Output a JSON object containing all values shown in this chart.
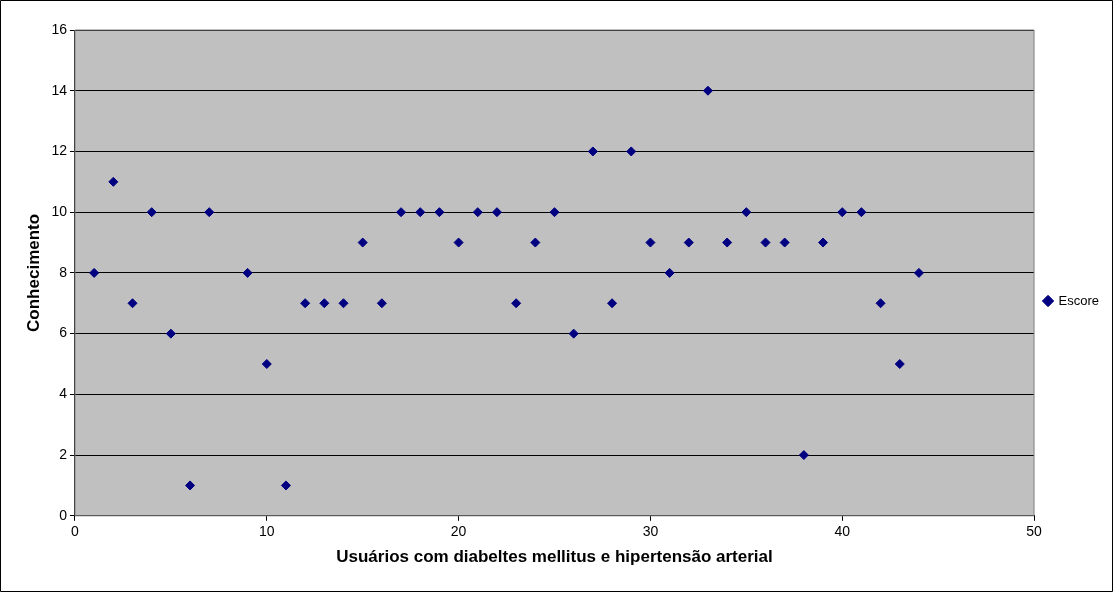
{
  "chart_data": {
    "type": "scatter",
    "xlabel": "Usuários com diabeltes mellitus e hipertensão arterial",
    "ylabel": "Conhecimento",
    "series": [
      {
        "name": "Escore",
        "color": "#000080",
        "x": [
          1,
          2,
          3,
          4,
          5,
          6,
          7,
          9,
          10,
          11,
          12,
          13,
          14,
          15,
          16,
          17,
          18,
          19,
          20,
          21,
          22,
          23,
          24,
          25,
          26,
          27,
          28,
          29,
          30,
          31,
          32,
          33,
          34,
          35,
          36,
          37,
          38,
          39,
          40,
          41,
          42,
          43,
          44
        ],
        "values": [
          8,
          11,
          7,
          10,
          6,
          1,
          10,
          8,
          5,
          1,
          7,
          7,
          7,
          9,
          7,
          10,
          10,
          10,
          9,
          10,
          10,
          7,
          9,
          10,
          6,
          12,
          7,
          12,
          9,
          8,
          9,
          14,
          9,
          10,
          9,
          9,
          2,
          9,
          10,
          10,
          7,
          5,
          8
        ]
      }
    ],
    "xlim": [
      0,
      50
    ],
    "xticks": [
      0,
      10,
      20,
      30,
      40,
      50
    ],
    "ylim": [
      0,
      16
    ],
    "yticks": [
      0,
      2,
      4,
      6,
      8,
      10,
      12,
      14,
      16
    ],
    "grid": "y",
    "legend": "right",
    "marker": "diamond"
  }
}
